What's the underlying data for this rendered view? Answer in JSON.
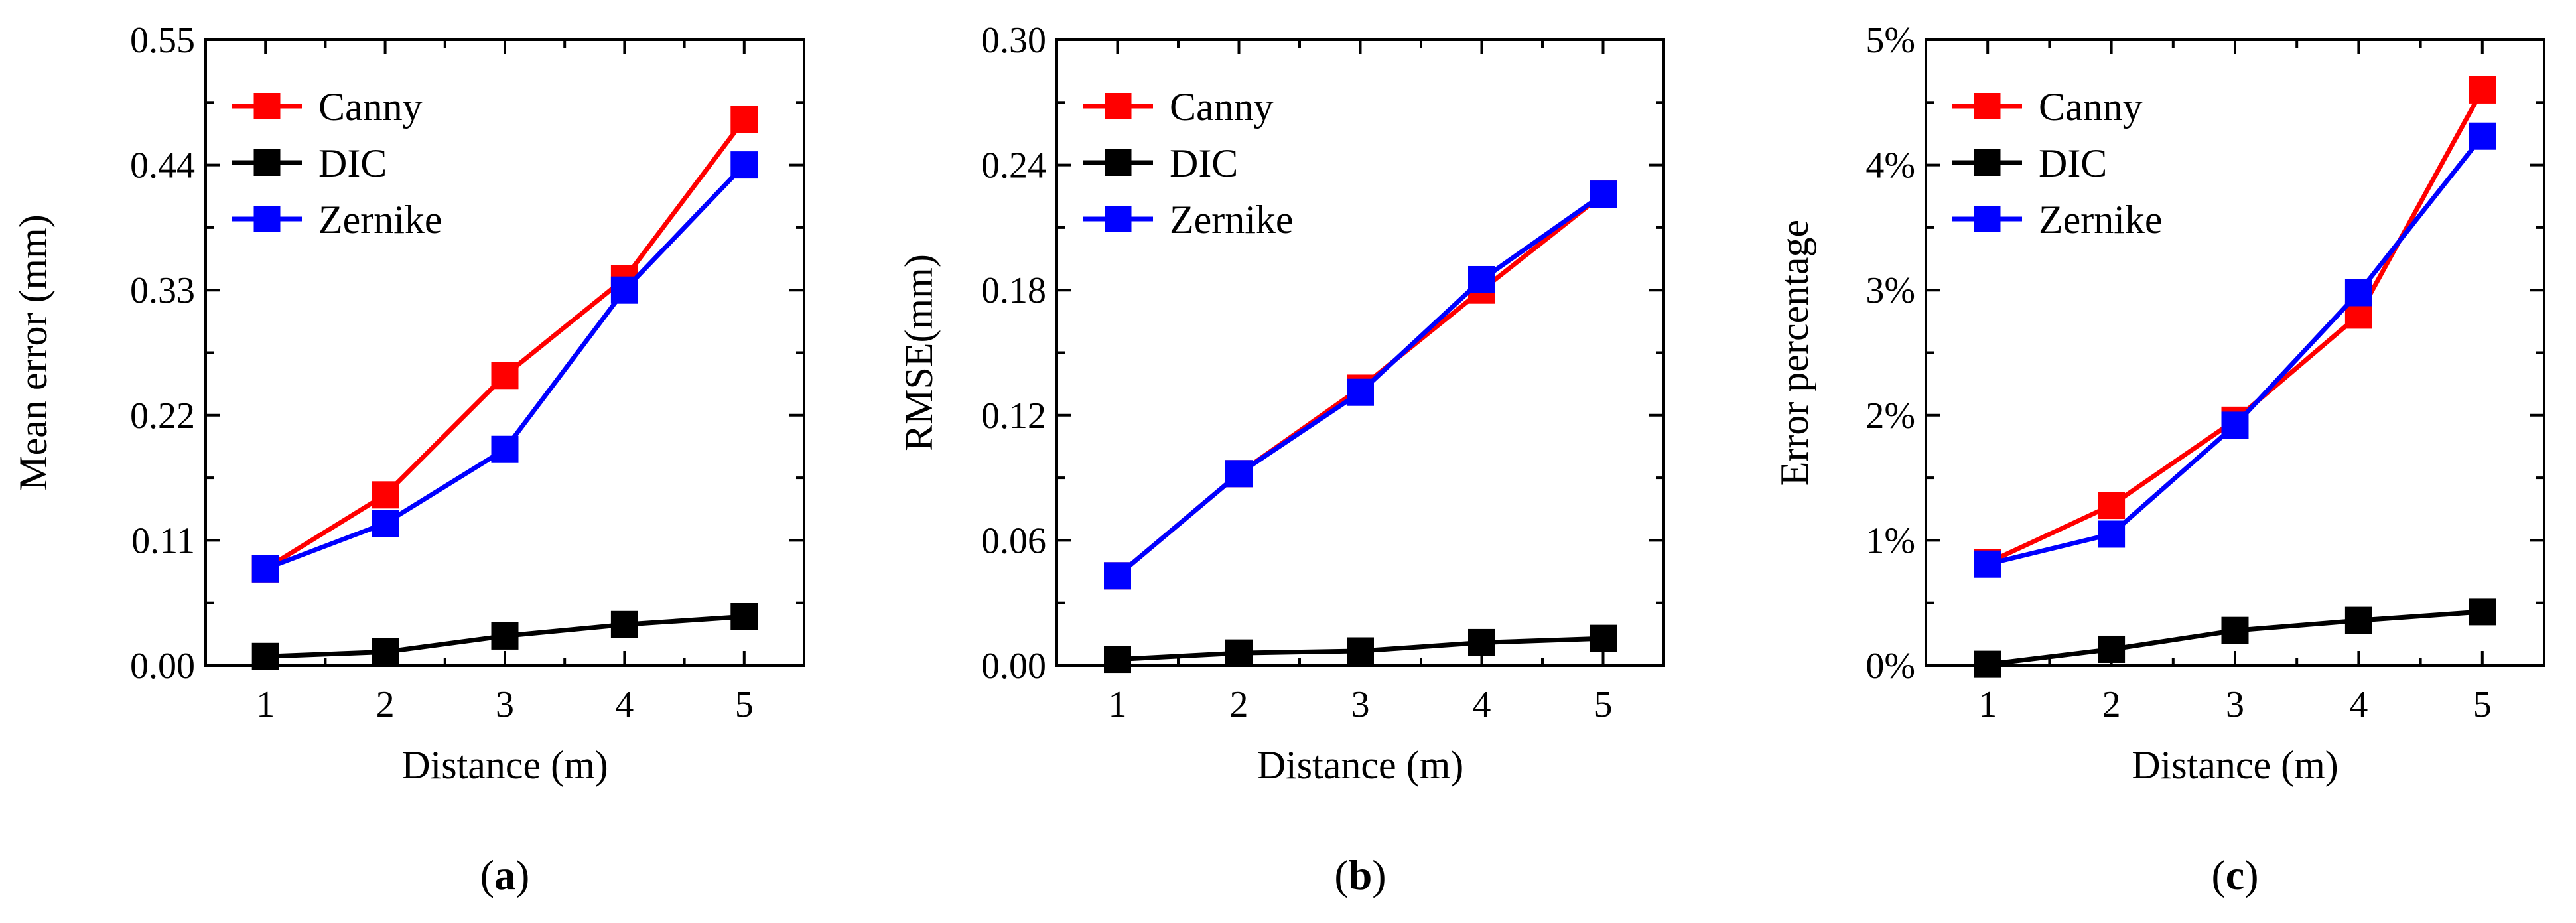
{
  "colors": {
    "canny": "#ff0000",
    "dic": "#000000",
    "zernike": "#0000ff"
  },
  "chart_data": [
    {
      "type": "line",
      "panel": "(a)",
      "panel_label": {
        "open": "(",
        "letter": "a",
        "close": ")"
      },
      "xlabel": "Distance (m)",
      "ylabel": "Mean error (mm)",
      "categories": [
        "1",
        "2",
        "3",
        "4",
        "5"
      ],
      "x": [
        1,
        2,
        3,
        4,
        5
      ],
      "xlim": [
        0.5,
        5.5
      ],
      "ylim": [
        0,
        0.55
      ],
      "yticks": [
        0,
        0.11,
        0.22,
        0.33,
        0.44,
        0.55
      ],
      "ytick_labels": [
        "0.00",
        "0.11",
        "0.22",
        "0.33",
        "0.44",
        "0.55"
      ],
      "legend_position": "top-left",
      "series": [
        {
          "name": "Canny",
          "color": "#ff0000",
          "values": [
            0.085,
            0.15,
            0.255,
            0.34,
            0.48
          ]
        },
        {
          "name": "DIC",
          "color": "#000000",
          "values": [
            0.008,
            0.012,
            0.026,
            0.036,
            0.043
          ]
        },
        {
          "name": "Zernike",
          "color": "#0000ff",
          "values": [
            0.085,
            0.125,
            0.19,
            0.33,
            0.44
          ]
        }
      ]
    },
    {
      "type": "line",
      "panel": "(b)",
      "panel_label": {
        "open": "(",
        "letter": "b",
        "close": ")"
      },
      "xlabel": "Distance (m)",
      "ylabel": "RMSE(mm)",
      "categories": [
        "1",
        "2",
        "3",
        "4",
        "5"
      ],
      "x": [
        1,
        2,
        3,
        4,
        5
      ],
      "xlim": [
        0.5,
        5.5
      ],
      "ylim": [
        0,
        0.3
      ],
      "yticks": [
        0,
        0.06,
        0.12,
        0.18,
        0.24,
        0.3
      ],
      "ytick_labels": [
        "0.00",
        "0.06",
        "0.12",
        "0.18",
        "0.24",
        "0.30"
      ],
      "legend_position": "top-left",
      "series": [
        {
          "name": "Canny",
          "color": "#ff0000",
          "values": [
            0.043,
            0.092,
            0.133,
            0.18,
            0.226
          ]
        },
        {
          "name": "DIC",
          "color": "#000000",
          "values": [
            0.003,
            0.006,
            0.007,
            0.011,
            0.013
          ]
        },
        {
          "name": "Zernike",
          "color": "#0000ff",
          "values": [
            0.043,
            0.092,
            0.131,
            0.185,
            0.226
          ]
        }
      ]
    },
    {
      "type": "line",
      "panel": "(c)",
      "panel_label": {
        "open": "(",
        "letter": "c",
        "close": ")"
      },
      "xlabel": "Distance (m)",
      "ylabel": "Error percentage",
      "categories": [
        "1",
        "2",
        "3",
        "4",
        "5"
      ],
      "x": [
        1,
        2,
        3,
        4,
        5
      ],
      "xlim": [
        0.5,
        5.5
      ],
      "ylim": [
        0,
        0.05
      ],
      "yticks": [
        0,
        0.01,
        0.02,
        0.03,
        0.04,
        0.05
      ],
      "ytick_labels": [
        "0%",
        "1%",
        "2%",
        "3%",
        "4%",
        "5%"
      ],
      "legend_position": "top-left",
      "series": [
        {
          "name": "Canny",
          "color": "#ff0000",
          "values": [
            0.0082,
            0.0128,
            0.0196,
            0.028,
            0.046
          ]
        },
        {
          "name": "DIC",
          "color": "#000000",
          "values": [
            0.0001,
            0.0013,
            0.0028,
            0.0036,
            0.0043
          ]
        },
        {
          "name": "Zernike",
          "color": "#0000ff",
          "values": [
            0.0081,
            0.0105,
            0.0192,
            0.0298,
            0.0423
          ]
        }
      ]
    }
  ]
}
